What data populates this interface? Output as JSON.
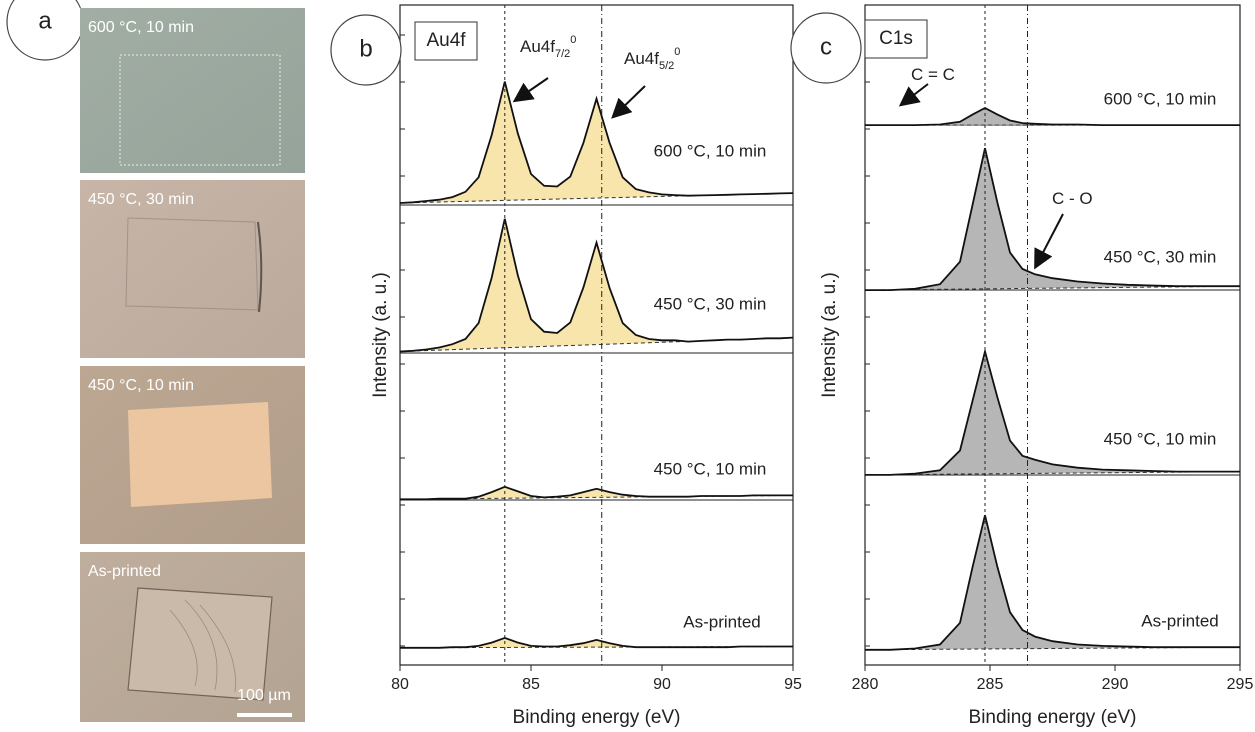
{
  "panel_a": {
    "label": "a",
    "images": [
      "600 °C, 10 min",
      "450 °C, 30 min",
      "450 °C, 10 min",
      "As-printed"
    ],
    "scale_bar": "100 µm"
  },
  "chart_data": [
    {
      "type": "line",
      "panel": "b",
      "title": "Au4f",
      "xlabel": "Binding energy (eV)",
      "ylabel": "Intensity (a. u.)",
      "xlim": [
        80,
        95
      ],
      "xticks": [
        80,
        85,
        90,
        95
      ],
      "ylim": [
        0,
        100
      ],
      "fill_color": "#f6e19c",
      "line_color": "#111",
      "reference_lines": [
        84.0,
        87.7
      ],
      "annotations": [
        {
          "text": "Au4f",
          "sub": "7/2",
          "sup": "0"
        },
        {
          "text": "Au4f",
          "sub": "5/2",
          "sup": "0"
        }
      ],
      "x": [
        80,
        80.5,
        81,
        81.5,
        82,
        82.5,
        83,
        83.5,
        84,
        84.5,
        85,
        85.5,
        86,
        86.5,
        87,
        87.5,
        88,
        88.5,
        89,
        89.5,
        90,
        90.5,
        91,
        91.5,
        92,
        92.5,
        93,
        93.5,
        94,
        94.5,
        95
      ],
      "series": [
        {
          "name": "600 °C, 10 min",
          "values": [
            70.0,
            70.1,
            70.3,
            70.5,
            70.9,
            71.7,
            73.9,
            80.3,
            88.4,
            80.5,
            74.4,
            72.6,
            72.5,
            74.0,
            79.1,
            85.8,
            79.1,
            73.9,
            72.1,
            71.6,
            71.3,
            71.2,
            71.1,
            71.15,
            71.2,
            71.25,
            71.3,
            71.35,
            71.4,
            71.45,
            71.5
          ]
        },
        {
          "name": "450 °C, 30 min",
          "values": [
            47.5,
            47.6,
            47.8,
            48.1,
            48.6,
            49.4,
            51.8,
            58.7,
            67.6,
            59.0,
            52.4,
            50.5,
            50.3,
            51.9,
            57.2,
            64.0,
            57.1,
            51.8,
            50.0,
            49.4,
            49.2,
            49.2,
            49.0,
            49.1,
            49.2,
            49.3,
            49.3,
            49.4,
            49.5,
            49.5,
            49.6
          ]
        },
        {
          "name": "450 °C, 10 min",
          "values": [
            25.1,
            25.1,
            25.1,
            25.2,
            25.2,
            25.2,
            25.5,
            26.2,
            27.0,
            26.3,
            25.6,
            25.4,
            25.5,
            25.7,
            26.2,
            26.7,
            26.2,
            25.8,
            25.6,
            25.5,
            25.5,
            25.5,
            25.5,
            25.6,
            25.6,
            25.6,
            25.6,
            25.7,
            25.7,
            25.7,
            25.7
          ]
        },
        {
          "name": "As-printed",
          "values": [
            2.6,
            2.6,
            2.6,
            2.6,
            2.7,
            2.7,
            2.9,
            3.4,
            4.1,
            3.4,
            2.9,
            2.8,
            2.8,
            3.0,
            3.3,
            3.8,
            3.3,
            2.9,
            2.7,
            2.7,
            2.7,
            2.7,
            2.7,
            2.7,
            2.7,
            2.7,
            2.8,
            2.8,
            2.8,
            2.8,
            2.8
          ]
        }
      ]
    },
    {
      "type": "line",
      "panel": "c",
      "title": "C1s",
      "xlabel": "Binding energy (eV)",
      "ylabel": "Intensity (a. u.)",
      "xlim": [
        280,
        295
      ],
      "xticks": [
        280,
        285,
        290,
        295
      ],
      "ylim": [
        0,
        100
      ],
      "fill_color": "#a9a9a9",
      "line_color": "#111",
      "reference_lines": [
        284.8,
        286.5
      ],
      "annotations": [
        {
          "text": "C = C"
        },
        {
          "text": "C - O"
        }
      ],
      "x": [
        280,
        281,
        282,
        283,
        283.8,
        284.3,
        284.8,
        285.3,
        285.8,
        286.3,
        286.8,
        287.5,
        288.5,
        289.5,
        290.5,
        291.5,
        292.5,
        293.5,
        295
      ],
      "series": [
        {
          "name": "600 °C, 10 min",
          "values": [
            81.8,
            81.8,
            81.8,
            81.9,
            82.3,
            83.4,
            84.4,
            83.4,
            82.5,
            82.1,
            82.0,
            81.9,
            81.9,
            81.8,
            81.8,
            81.8,
            81.8,
            81.8,
            81.8
          ]
        },
        {
          "name": "450 °C, 30 min",
          "values": [
            56.8,
            56.8,
            57.0,
            57.7,
            61.1,
            69.7,
            78.3,
            70.0,
            62.5,
            60.0,
            59.2,
            58.6,
            58.1,
            57.8,
            57.6,
            57.5,
            57.4,
            57.4,
            57.4
          ]
        },
        {
          "name": "450 °C, 10 min",
          "values": [
            28.8,
            28.8,
            29.0,
            29.5,
            32.5,
            40.0,
            47.5,
            40.5,
            34.0,
            31.7,
            31.1,
            30.4,
            29.9,
            29.6,
            29.5,
            29.4,
            29.3,
            29.3,
            29.3
          ]
        },
        {
          "name": "As-printed",
          "values": [
            2.3,
            2.3,
            2.5,
            3.1,
            6.4,
            14.8,
            22.7,
            14.8,
            8.0,
            5.3,
            4.3,
            3.6,
            3.1,
            2.9,
            2.8,
            2.7,
            2.7,
            2.7,
            2.7
          ]
        }
      ]
    }
  ]
}
